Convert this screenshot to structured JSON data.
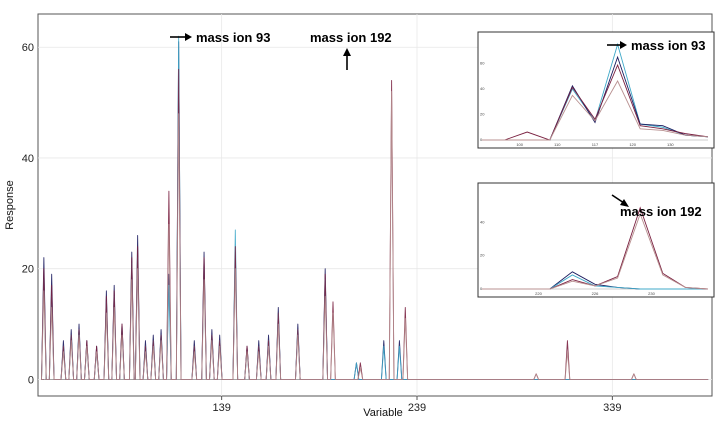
{
  "chart_data": {
    "type": "line",
    "xlabel": "Variable",
    "ylabel": "Response",
    "x_ticks": [
      139,
      239,
      339
    ],
    "y_ticks": [
      0,
      20,
      40,
      60
    ],
    "xlim": [
      45,
      390
    ],
    "ylim": [
      -3,
      66
    ],
    "grid": true,
    "series": [
      {
        "color": "#1a1a5e",
        "peaks": [
          [
            48,
            22
          ],
          [
            52,
            19
          ],
          [
            58,
            7
          ],
          [
            62,
            9
          ],
          [
            66,
            10
          ],
          [
            70,
            7
          ],
          [
            75,
            6
          ],
          [
            80,
            16
          ],
          [
            84,
            17
          ],
          [
            88,
            10
          ],
          [
            93,
            23
          ],
          [
            96,
            26
          ],
          [
            100,
            7
          ],
          [
            104,
            8
          ],
          [
            108,
            9
          ],
          [
            112,
            19
          ],
          [
            117,
            61
          ],
          [
            125,
            7
          ],
          [
            130,
            23
          ],
          [
            134,
            9
          ],
          [
            138,
            8
          ],
          [
            146,
            23
          ],
          [
            152,
            6
          ],
          [
            158,
            7
          ],
          [
            163,
            8
          ],
          [
            168,
            13
          ],
          [
            178,
            10
          ],
          [
            192,
            20
          ],
          [
            208,
            3
          ],
          [
            222,
            7
          ],
          [
            230,
            7
          ]
        ]
      },
      {
        "color": "#3fa9c9",
        "peaks": [
          [
            48,
            18
          ],
          [
            52,
            15
          ],
          [
            58,
            6
          ],
          [
            62,
            8
          ],
          [
            66,
            9
          ],
          [
            70,
            6
          ],
          [
            75,
            5
          ],
          [
            80,
            14
          ],
          [
            84,
            15
          ],
          [
            88,
            9
          ],
          [
            93,
            21
          ],
          [
            96,
            22
          ],
          [
            100,
            6
          ],
          [
            104,
            7
          ],
          [
            108,
            8
          ],
          [
            112,
            17
          ],
          [
            117,
            62
          ],
          [
            125,
            6
          ],
          [
            130,
            20
          ],
          [
            134,
            8
          ],
          [
            138,
            7
          ],
          [
            146,
            27
          ],
          [
            152,
            5
          ],
          [
            158,
            6
          ],
          [
            163,
            7
          ],
          [
            168,
            12
          ],
          [
            178,
            9
          ],
          [
            192,
            18
          ],
          [
            208,
            3
          ],
          [
            222,
            6
          ],
          [
            230,
            6
          ]
        ]
      },
      {
        "color": "#7a2040",
        "peaks": [
          [
            48,
            20
          ],
          [
            52,
            17
          ],
          [
            58,
            6
          ],
          [
            62,
            8
          ],
          [
            66,
            9
          ],
          [
            70,
            7
          ],
          [
            75,
            6
          ],
          [
            80,
            15
          ],
          [
            84,
            16
          ],
          [
            88,
            10
          ],
          [
            93,
            22
          ],
          [
            96,
            24
          ],
          [
            100,
            6
          ],
          [
            104,
            7
          ],
          [
            108,
            8
          ],
          [
            112,
            34
          ],
          [
            117,
            56
          ],
          [
            125,
            6
          ],
          [
            130,
            22
          ],
          [
            134,
            8
          ],
          [
            138,
            7
          ],
          [
            146,
            24
          ],
          [
            152,
            6
          ],
          [
            158,
            6
          ],
          [
            163,
            7
          ],
          [
            168,
            12
          ],
          [
            178,
            9
          ],
          [
            192,
            19
          ],
          [
            196,
            14
          ],
          [
            210,
            3
          ],
          [
            226,
            54
          ],
          [
            233,
            13
          ],
          [
            300,
            1
          ],
          [
            316,
            7
          ],
          [
            350,
            1
          ]
        ]
      },
      {
        "color": "#b89090",
        "peaks": [
          [
            48,
            16
          ],
          [
            52,
            13
          ],
          [
            58,
            5
          ],
          [
            62,
            7
          ],
          [
            66,
            8
          ],
          [
            70,
            6
          ],
          [
            75,
            5
          ],
          [
            80,
            12
          ],
          [
            84,
            13
          ],
          [
            88,
            8
          ],
          [
            93,
            18
          ],
          [
            96,
            20
          ],
          [
            100,
            5
          ],
          [
            104,
            6
          ],
          [
            108,
            7
          ],
          [
            112,
            28
          ],
          [
            117,
            48
          ],
          [
            125,
            5
          ],
          [
            130,
            18
          ],
          [
            134,
            7
          ],
          [
            138,
            6
          ],
          [
            146,
            20
          ],
          [
            152,
            5
          ],
          [
            158,
            5
          ],
          [
            163,
            6
          ],
          [
            168,
            10
          ],
          [
            178,
            8
          ],
          [
            192,
            15
          ],
          [
            196,
            12
          ],
          [
            210,
            2
          ],
          [
            226,
            52
          ],
          [
            233,
            11
          ],
          [
            300,
            1
          ],
          [
            316,
            5
          ],
          [
            350,
            1
          ]
        ]
      }
    ],
    "annotations": [
      {
        "text": "mass ion 93",
        "x": 117,
        "y": 61
      },
      {
        "text": "mass ion 192",
        "x": 226,
        "y": 54
      }
    ],
    "insets": [
      {
        "annotation": "mass ion 93",
        "x_tick_labels": [
          "100",
          "110",
          "117",
          "120",
          "130"
        ],
        "y_tick_labels": [
          "0",
          "20",
          "40",
          "60"
        ],
        "series": [
          {
            "color": "#3fa9c9",
            "values": [
              0,
              0,
              0,
              0,
              32,
              12,
              60,
              10,
              8,
              3,
              2
            ]
          },
          {
            "color": "#1a1a5e",
            "values": [
              0,
              0,
              0,
              0,
              34,
              11,
              52,
              10,
              9,
              3,
              2
            ]
          },
          {
            "color": "#7a2040",
            "values": [
              0,
              0,
              5,
              0,
              33,
              13,
              47,
              9,
              7,
              4,
              2
            ]
          },
          {
            "color": "#b89090",
            "values": [
              0,
              0,
              0,
              0,
              28,
              12,
              37,
              7,
              6,
              3,
              2
            ]
          }
        ]
      },
      {
        "annotation": "mass ion 192",
        "x_tick_labels": [
          "220",
          "226",
          "230"
        ],
        "y_tick_labels": [
          "0",
          "20",
          "40"
        ],
        "series": [
          {
            "color": "#1a1a5e",
            "values": [
              0,
              0,
              0,
              0,
              11,
              3,
              1,
              0,
              0,
              0,
              0
            ]
          },
          {
            "color": "#3fa9c9",
            "values": [
              0,
              0,
              0,
              0,
              9,
              2,
              1,
              0,
              0,
              0,
              0
            ]
          },
          {
            "color": "#7a2040",
            "values": [
              0,
              0,
              0,
              0,
              6,
              2,
              8,
              52,
              10,
              1,
              0
            ]
          },
          {
            "color": "#b89090",
            "values": [
              0,
              0,
              0,
              0,
              5,
              2,
              7,
              48,
              9,
              1,
              0
            ]
          }
        ]
      }
    ]
  }
}
